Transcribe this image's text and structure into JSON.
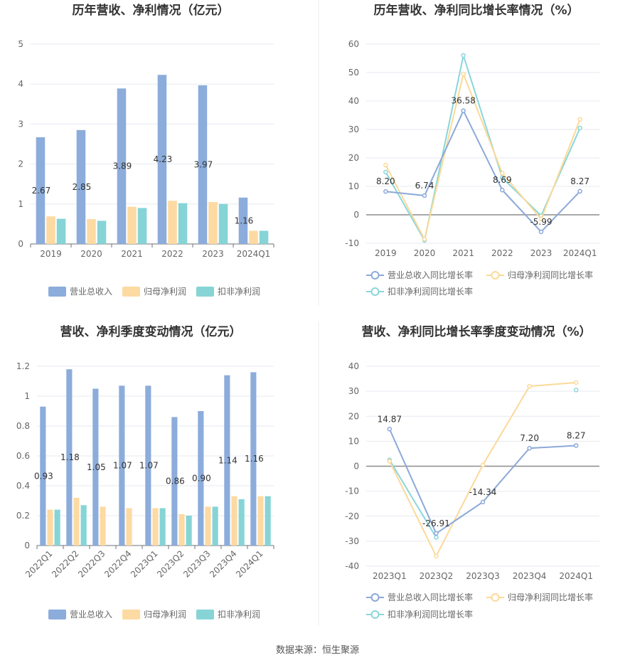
{
  "colors": {
    "revenue": "#8cacdb",
    "net_profit": "#fddaa2",
    "deducted_profit": "#86d4d6",
    "revenue_line": "#8ca9d8",
    "net_line": "#fcd999",
    "deducted_line": "#8ad6da"
  },
  "source_text": "数据来源：恒生聚源",
  "chart_data": [
    {
      "type": "bar",
      "title": "历年营收、净利情况（亿元）",
      "categories": [
        "2019",
        "2020",
        "2021",
        "2022",
        "2023",
        "2024Q1"
      ],
      "ylim": [
        0,
        5
      ],
      "yticks": [
        0,
        1,
        2,
        3,
        4,
        5
      ],
      "ytick_labels": [
        "0",
        "1",
        "2",
        "3",
        "4",
        "5"
      ],
      "series": [
        {
          "name": "营业总收入",
          "values": [
            2.67,
            2.85,
            3.89,
            4.23,
            3.97,
            1.16
          ],
          "labels": [
            "2.67",
            "2.85",
            "3.89",
            "4.23",
            "3.97",
            "1.16"
          ]
        },
        {
          "name": "归母净利润",
          "values": [
            0.69,
            0.62,
            0.93,
            1.08,
            1.05,
            0.33
          ]
        },
        {
          "name": "扣非净利润",
          "values": [
            0.63,
            0.58,
            0.9,
            1.02,
            1.0,
            0.33
          ]
        }
      ],
      "legend": "bottom",
      "grid": true
    },
    {
      "type": "line",
      "title": "历年营收、净利同比增长率情况（%）",
      "categories": [
        "2019",
        "2020",
        "2021",
        "2022",
        "2023",
        "2024Q1"
      ],
      "ylim": [
        -10,
        60
      ],
      "yticks": [
        -10,
        0,
        10,
        20,
        30,
        40,
        50,
        60
      ],
      "ytick_labels": [
        "-10",
        "0",
        "10",
        "20",
        "30",
        "40",
        "50",
        "60"
      ],
      "series": [
        {
          "name": "营业总收入同比增长率",
          "values": [
            8.2,
            6.74,
            36.58,
            8.69,
            -5.99,
            8.27
          ],
          "labels": [
            "8.20",
            "6.74",
            "36.58",
            "8.69",
            "-5.99",
            "8.27"
          ]
        },
        {
          "name": "归母净利润同比增长率",
          "values": [
            17.5,
            -8.6,
            49.5,
            14.6,
            -1.5,
            33.5
          ]
        },
        {
          "name": "扣非净利润同比增长率",
          "values": [
            15.0,
            -9.0,
            56.0,
            13.0,
            -0.3,
            30.5
          ]
        }
      ],
      "legend": "bottom",
      "grid": true
    },
    {
      "type": "bar",
      "title": "营收、净利季度变动情况（亿元）",
      "categories": [
        "2022Q1",
        "2022Q2",
        "2022Q3",
        "2022Q4",
        "2023Q1",
        "2023Q2",
        "2023Q3",
        "2023Q4",
        "2024Q1"
      ],
      "ylim": [
        0,
        1.2
      ],
      "yticks": [
        0,
        0.2,
        0.4,
        0.6,
        0.8,
        1.0,
        1.2
      ],
      "ytick_labels": [
        "0",
        "0.2",
        "0.4",
        "0.6",
        "0.8",
        "1",
        "1.2"
      ],
      "series": [
        {
          "name": "营业总收入",
          "values": [
            0.93,
            1.18,
            1.05,
            1.07,
            1.07,
            0.86,
            0.9,
            1.14,
            1.16
          ],
          "labels": [
            "0.93",
            "1.18",
            "1.05",
            "1.07",
            "1.07",
            "0.86",
            "0.90",
            "1.14",
            "1.16"
          ]
        },
        {
          "name": "归母净利润",
          "values": [
            0.24,
            0.32,
            0.26,
            0.25,
            0.25,
            0.21,
            0.26,
            0.33,
            0.33
          ]
        },
        {
          "name": "扣非净利润",
          "values": [
            0.24,
            0.27,
            null,
            null,
            0.25,
            0.2,
            0.26,
            0.31,
            0.33
          ]
        }
      ],
      "legend": "bottom",
      "grid": true
    },
    {
      "type": "line",
      "title": "营收、净利同比增长率季度变动情况（%）",
      "categories": [
        "2023Q1",
        "2023Q2",
        "2023Q3",
        "2023Q4",
        "2024Q1"
      ],
      "ylim": [
        -40,
        40
      ],
      "yticks": [
        -40,
        -30,
        -20,
        -10,
        0,
        10,
        20,
        30,
        40
      ],
      "ytick_labels": [
        "-40",
        "-30",
        "-20",
        "-10",
        "0",
        "10",
        "20",
        "30",
        "40"
      ],
      "series": [
        {
          "name": "营业总收入同比增长率",
          "values": [
            14.87,
            -26.91,
            -14.34,
            7.2,
            8.27
          ],
          "labels": [
            "14.87",
            "-26.91",
            "-14.34",
            "7.20",
            "8.27"
          ]
        },
        {
          "name": "归母净利润同比增长率",
          "values": [
            2.0,
            -36.0,
            0.5,
            32.0,
            33.5
          ]
        },
        {
          "name": "扣非净利润同比增长率",
          "values": [
            2.5,
            -28.5,
            null,
            null,
            30.5
          ]
        }
      ],
      "legend": "bottom",
      "grid": true
    }
  ]
}
